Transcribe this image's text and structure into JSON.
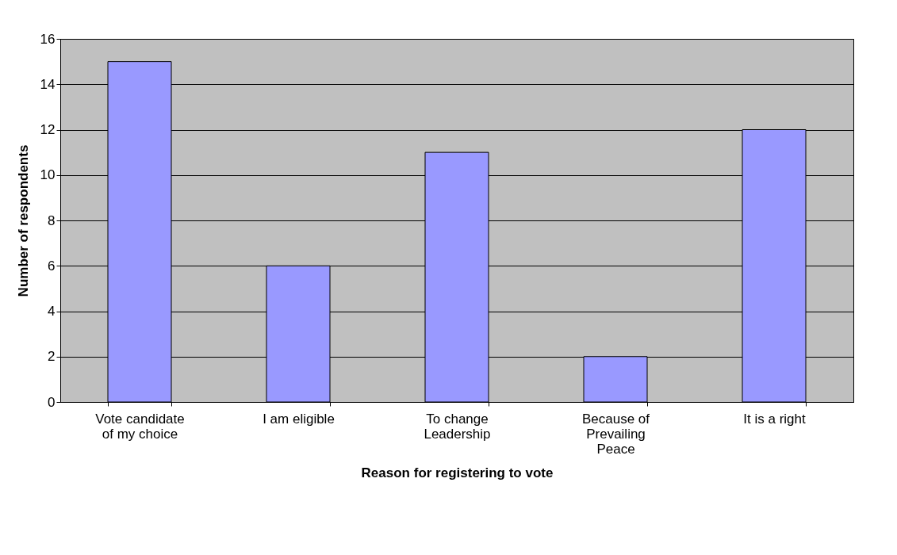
{
  "chart_data": {
    "type": "bar",
    "xlabel": "Reason for registering to vote",
    "ylabel": "Number of respondents",
    "categories": [
      "Vote candidate of my choice",
      "I am eligible",
      "To change Leadership",
      "Because of Prevailing Peace",
      "It is a right"
    ],
    "values": [
      15,
      6,
      11,
      2,
      12
    ],
    "color": "#9999ff",
    "ylim": [
      0,
      16
    ],
    "yticks": [
      0,
      2,
      4,
      6,
      8,
      10,
      12,
      14,
      16
    ],
    "grid": "y"
  }
}
